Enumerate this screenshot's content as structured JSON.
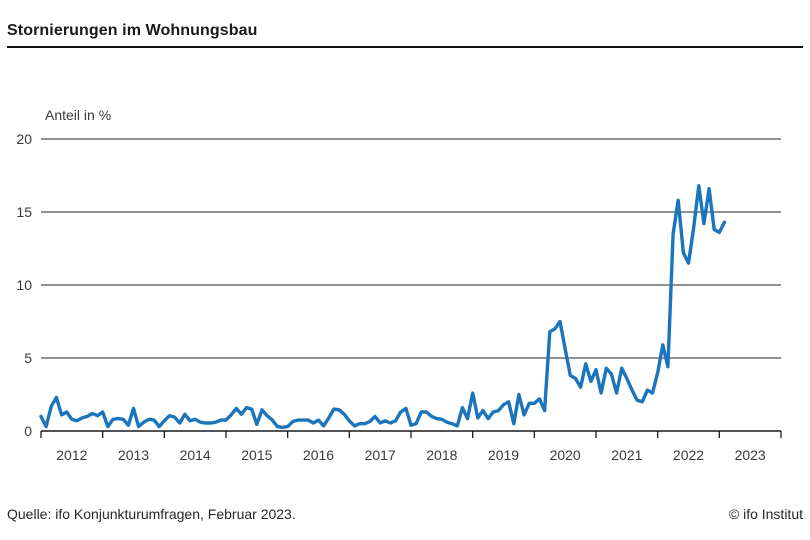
{
  "header": {
    "title": "Stornierungen im Wohnungsbau"
  },
  "chart": {
    "line_color": "#1b75bc",
    "grid_color": "#4f4f4f",
    "axis_color": "#1a1a1a",
    "text_color": "#3a3a3a"
  },
  "chart_data": {
    "type": "line",
    "title": "Stornierungen im Wohnungsbau",
    "ylabel": "Anteil in %",
    "xlabel": "",
    "x_start": "2012-01",
    "x_frequency": "monthly",
    "x_end": "2023-02",
    "x_tick_labels": [
      "2012",
      "2013",
      "2014",
      "2015",
      "2016",
      "2017",
      "2018",
      "2019",
      "2020",
      "2021",
      "2022",
      "2023"
    ],
    "y_ticks": [
      0,
      5,
      10,
      15,
      20
    ],
    "ylim": [
      0,
      20
    ],
    "grid": true,
    "legend": "none",
    "values": [
      1.0,
      0.3,
      1.7,
      2.3,
      1.1,
      1.3,
      0.8,
      0.7,
      0.9,
      1.0,
      1.2,
      1.05,
      1.3,
      0.3,
      0.8,
      0.85,
      0.8,
      0.4,
      1.55,
      0.3,
      0.6,
      0.8,
      0.75,
      0.3,
      0.7,
      1.05,
      0.95,
      0.55,
      1.15,
      0.7,
      0.8,
      0.6,
      0.55,
      0.55,
      0.6,
      0.75,
      0.75,
      1.1,
      1.55,
      1.15,
      1.6,
      1.5,
      0.45,
      1.45,
      1.05,
      0.75,
      0.3,
      0.25,
      0.3,
      0.65,
      0.75,
      0.75,
      0.75,
      0.55,
      0.75,
      0.35,
      0.9,
      1.5,
      1.45,
      1.15,
      0.7,
      0.35,
      0.5,
      0.5,
      0.65,
      1.0,
      0.55,
      0.7,
      0.55,
      0.7,
      1.3,
      1.55,
      0.4,
      0.5,
      1.3,
      1.3,
      1.0,
      0.85,
      0.8,
      0.6,
      0.5,
      0.35,
      1.6,
      0.85,
      2.6,
      0.9,
      1.4,
      0.85,
      1.3,
      1.4,
      1.8,
      2.0,
      0.5,
      2.5,
      1.1,
      1.9,
      1.9,
      2.2,
      1.4,
      6.8,
      7.0,
      7.5,
      5.6,
      3.8,
      3.6,
      3.0,
      4.6,
      3.4,
      4.2,
      2.6,
      4.3,
      3.9,
      2.6,
      4.3,
      3.6,
      2.8,
      2.1,
      2.0,
      2.8,
      2.6,
      4.0,
      5.9,
      4.4,
      13.5,
      15.8,
      12.2,
      11.5,
      13.9,
      16.8,
      14.2,
      16.6,
      13.8,
      13.6,
      14.3
    ]
  },
  "footer": {
    "source": "Quelle: ifo Konjunkturumfragen, Februar 2023.",
    "copyright": "© ifo Institut"
  }
}
